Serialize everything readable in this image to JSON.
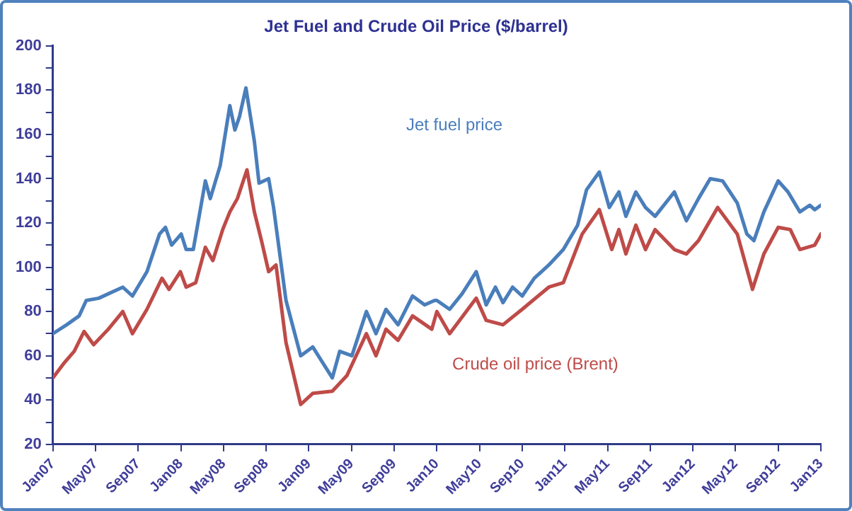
{
  "chart_data": {
    "type": "line",
    "title": "Jet Fuel and Crude Oil Price ($/barrel)",
    "xlim": [
      "2007-01",
      "2013-01"
    ],
    "xticks": [
      {
        "value": "2007-01",
        "label": "Jan07"
      },
      {
        "value": "2007-05",
        "label": "May07"
      },
      {
        "value": "2007-09",
        "label": "Sep07"
      },
      {
        "value": "2008-01",
        "label": "Jan08"
      },
      {
        "value": "2008-05",
        "label": "May08"
      },
      {
        "value": "2008-09",
        "label": "Sep08"
      },
      {
        "value": "2009-01",
        "label": "Jan09"
      },
      {
        "value": "2009-05",
        "label": "May09"
      },
      {
        "value": "2009-09",
        "label": "Sep09"
      },
      {
        "value": "2010-01",
        "label": "Jan10"
      },
      {
        "value": "2010-05",
        "label": "May10"
      },
      {
        "value": "2010-09",
        "label": "Sep10"
      },
      {
        "value": "2011-01",
        "label": "Jan11"
      },
      {
        "value": "2011-05",
        "label": "May11"
      },
      {
        "value": "2011-09",
        "label": "Sep11"
      },
      {
        "value": "2012-01",
        "label": "Jan12"
      },
      {
        "value": "2012-05",
        "label": "May12"
      },
      {
        "value": "2012-09",
        "label": "Sep12"
      },
      {
        "value": "2013-01",
        "label": "Jan13"
      }
    ],
    "ylim": [
      20,
      200
    ],
    "yticks": [
      20,
      {
        "value": 30,
        "label": null
      },
      40,
      {
        "value": 50,
        "label": null
      },
      60,
      {
        "value": 70,
        "label": null
      },
      80,
      {
        "value": 90,
        "label": null
      },
      100,
      {
        "value": 110,
        "label": null
      },
      120,
      {
        "value": 130,
        "label": null
      },
      140,
      {
        "value": 150,
        "label": null
      },
      160,
      {
        "value": 170,
        "label": null
      },
      180,
      {
        "value": 190,
        "label": null
      },
      200
    ],
    "grid": false,
    "legend": false,
    "marker": "none",
    "line_style": "solid",
    "series": [
      {
        "name": "Jet fuel price",
        "color": "#4a7ebb",
        "x": [
          "2007-01-01",
          "2007-02-10",
          "2007-03-15",
          "2007-04-05",
          "2007-05-10",
          "2007-07-18",
          "2007-08-15",
          "2007-09-26",
          "2007-11-01",
          "2007-11-18",
          "2007-12-05",
          "2008-01-02",
          "2008-01-16",
          "2008-02-06",
          "2008-03-10",
          "2008-03-24",
          "2008-04-22",
          "2008-05-19",
          "2008-06-03",
          "2008-06-16",
          "2008-07-04",
          "2008-07-28",
          "2008-08-11",
          "2008-09-08",
          "2008-09-22",
          "2008-10-27",
          "2008-12-08",
          "2009-01-12",
          "2009-03-07",
          "2009-03-28",
          "2009-05-02",
          "2009-06-13",
          "2009-07-10",
          "2009-08-08",
          "2009-09-12",
          "2009-10-23",
          "2009-11-27",
          "2009-12-25",
          "2010-01-01",
          "2010-02-07",
          "2010-03-12",
          "2010-04-22",
          "2010-05-20",
          "2010-06-16",
          "2010-07-07",
          "2010-08-04",
          "2010-09-01",
          "2010-10-05",
          "2010-11-16",
          "2010-12-27",
          "2011-02-07",
          "2011-03-02",
          "2011-04-08",
          "2011-05-06",
          "2011-06-03",
          "2011-06-23",
          "2011-07-21",
          "2011-08-18",
          "2011-09-15",
          "2011-11-09",
          "2011-12-13",
          "2012-01-17",
          "2012-02-20",
          "2012-03-25",
          "2012-05-06",
          "2012-06-03",
          "2012-06-23",
          "2012-07-21",
          "2012-09-01",
          "2012-09-29",
          "2012-11-02",
          "2012-11-30",
          "2012-12-14",
          "2013-01-01"
        ],
        "values": [
          70,
          74,
          78,
          85,
          86,
          91,
          87,
          98,
          115,
          118,
          110,
          115,
          108,
          108,
          139,
          131,
          146,
          173,
          162,
          168,
          181,
          157,
          138,
          140,
          127,
          85,
          60,
          64,
          50,
          62,
          60,
          80,
          70,
          81,
          74,
          87,
          83,
          85,
          85,
          81,
          88,
          98,
          83,
          91,
          84,
          91,
          87,
          95,
          101,
          108,
          119,
          135,
          143,
          127,
          134,
          123,
          134,
          127,
          123,
          134,
          121,
          131,
          140,
          139,
          129,
          115,
          112,
          125,
          139,
          134,
          125,
          128,
          126,
          128
        ]
      },
      {
        "name": "Crude oil price (Brent)",
        "color": "#be4b48",
        "x": [
          "2007-01-01",
          "2007-02-04",
          "2007-03-01",
          "2007-03-29",
          "2007-04-26",
          "2007-06-07",
          "2007-07-18",
          "2007-08-15",
          "2007-09-26",
          "2007-11-08",
          "2007-11-28",
          "2007-12-30",
          "2008-01-16",
          "2008-02-13",
          "2008-03-10",
          "2008-04-01",
          "2008-04-29",
          "2008-05-19",
          "2008-06-10",
          "2008-07-07",
          "2008-07-28",
          "2008-08-18",
          "2008-09-08",
          "2008-09-29",
          "2008-10-27",
          "2008-12-08",
          "2009-01-12",
          "2009-03-07",
          "2009-04-18",
          "2009-06-13",
          "2009-07-10",
          "2009-08-08",
          "2009-09-12",
          "2009-10-23",
          "2009-12-17",
          "2010-01-01",
          "2010-02-07",
          "2010-04-22",
          "2010-05-20",
          "2010-07-07",
          "2010-09-01",
          "2010-11-16",
          "2010-12-27",
          "2011-02-20",
          "2011-04-08",
          "2011-05-13",
          "2011-06-03",
          "2011-06-23",
          "2011-07-21",
          "2011-08-18",
          "2011-09-15",
          "2011-11-09",
          "2011-12-13",
          "2012-01-17",
          "2012-03-11",
          "2012-05-06",
          "2012-06-19",
          "2012-07-21",
          "2012-09-01",
          "2012-10-05",
          "2012-11-02",
          "2012-12-14",
          "2013-01-01"
        ],
        "values": [
          50,
          57,
          62,
          71,
          65,
          72,
          80,
          70,
          81,
          95,
          90,
          98,
          91,
          93,
          109,
          103,
          117,
          125,
          131,
          144,
          125,
          112,
          98,
          101,
          66,
          38,
          43,
          44,
          51,
          70,
          60,
          72,
          67,
          78,
          72,
          80,
          70,
          86,
          76,
          74,
          81,
          91,
          93,
          115,
          126,
          108,
          117,
          106,
          119,
          108,
          117,
          108,
          106,
          112,
          127,
          115,
          90,
          106,
          118,
          117,
          108,
          110,
          115
        ]
      }
    ]
  }
}
